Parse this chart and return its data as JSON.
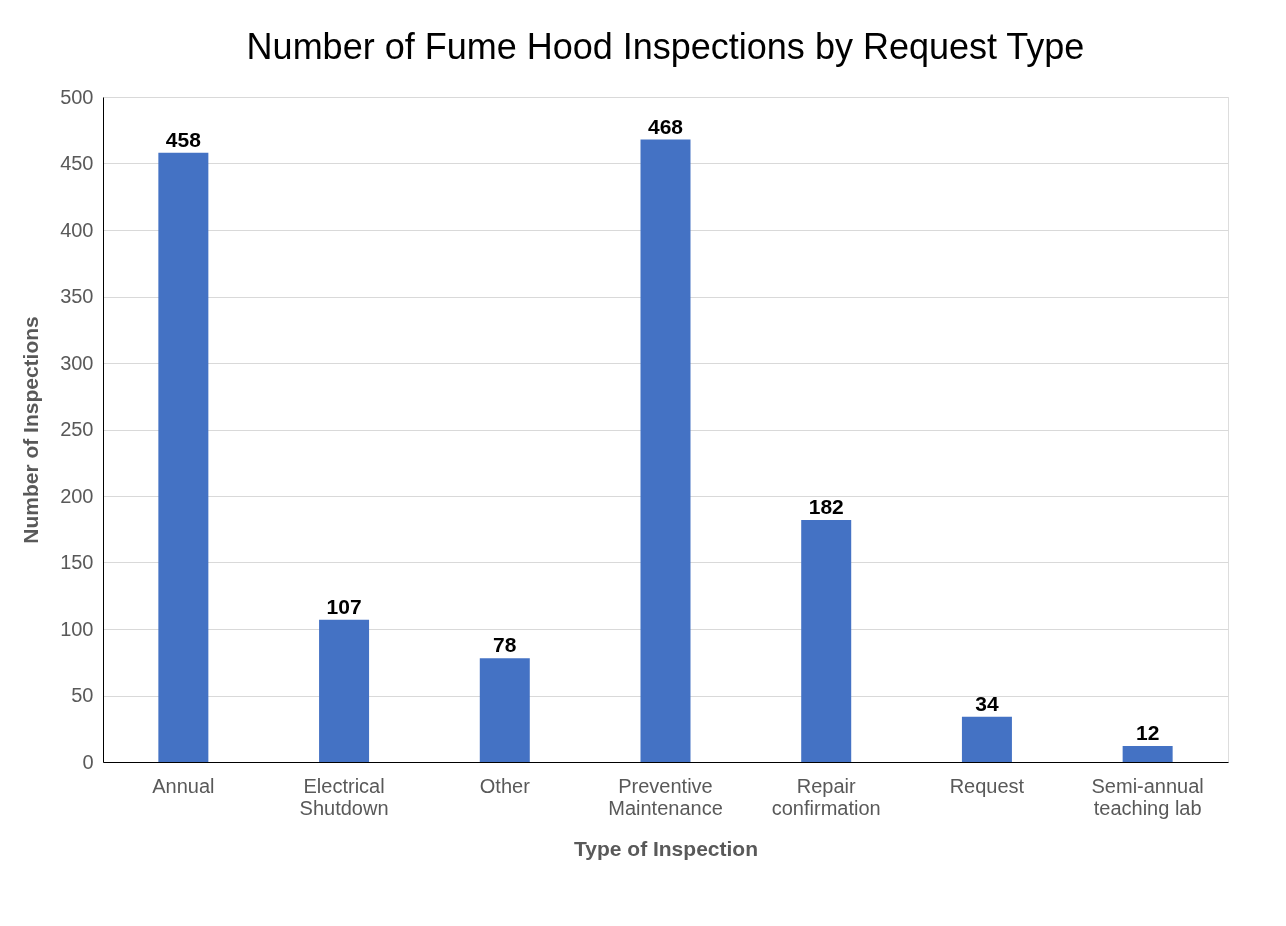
{
  "chart_data": {
    "type": "bar",
    "title": "Number of Fume Hood Inspections by Request Type",
    "xlabel": "Type of Inspection",
    "ylabel": "Number of Inspections",
    "categories": [
      "Annual",
      "Electrical Shutdown",
      "Other",
      "Preventive Maintenance",
      "Repair confirmation",
      "Request",
      "Semi-annual teaching lab"
    ],
    "values": [
      458,
      107,
      78,
      468,
      182,
      34,
      12
    ],
    "color": "#4472c4",
    "ylim": [
      0,
      500
    ],
    "yticks": [
      0,
      50,
      100,
      150,
      200,
      250,
      300,
      350,
      400,
      450,
      500
    ],
    "grid": "y",
    "data_labels": true
  }
}
